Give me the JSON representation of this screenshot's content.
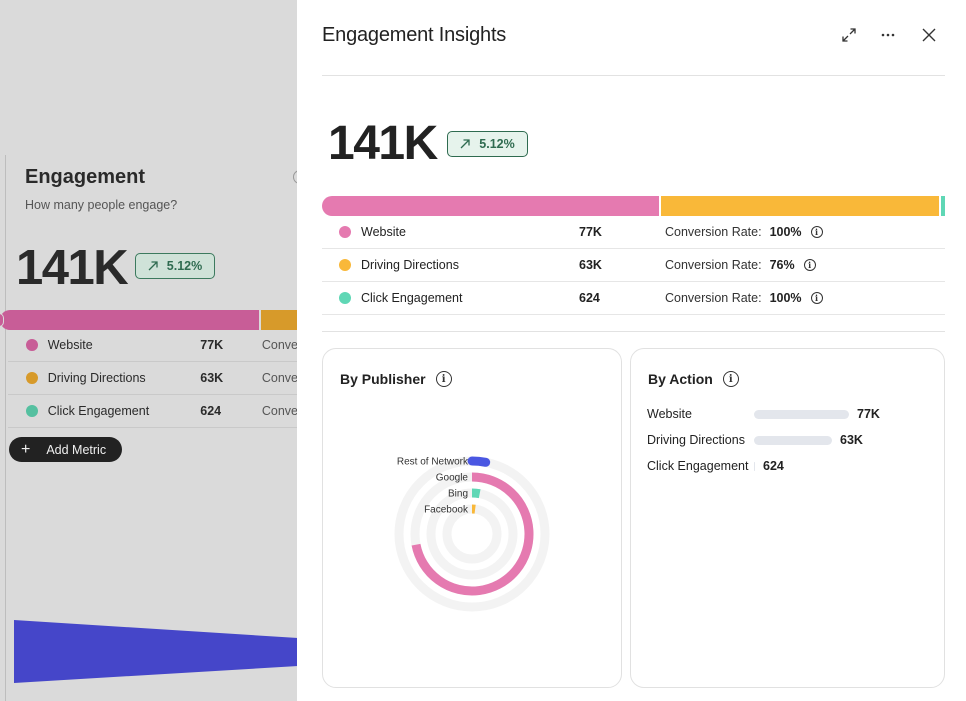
{
  "background": {
    "title": "Engagement",
    "subtitle": "How many people engage?",
    "total": "141K",
    "change": "5.12%",
    "rows": [
      {
        "name": "Website",
        "value": "77K",
        "conv": "Conve",
        "color": "#c85d97"
      },
      {
        "name": "Driving Directions",
        "value": "63K",
        "conv": "Conve",
        "color": "#d79a2a"
      },
      {
        "name": "Click Engagement",
        "value": "624",
        "conv": "Conve",
        "color": "#55c0a0"
      }
    ],
    "add_label": "Add Metric"
  },
  "panel": {
    "title": "Engagement Insights",
    "total": "141K",
    "change": "5.12%",
    "conversion_label": "Conversion Rate:",
    "metrics": [
      {
        "name": "Website",
        "value": "77K",
        "rate": "100%",
        "share": 0.545,
        "color": "#e57ab0"
      },
      {
        "name": "Driving Directions",
        "value": "63K",
        "rate": "76%",
        "share": 0.449,
        "color": "#f9b839"
      },
      {
        "name": "Click Engagement",
        "value": "624",
        "rate": "100%",
        "share": 0.006,
        "color": "#5fd7b5"
      }
    ]
  },
  "by_publisher": {
    "title": "By Publisher",
    "items": [
      {
        "name": "Rest of Network",
        "color": "#4a57e2",
        "fraction": 0.03
      },
      {
        "name": "Google",
        "color": "#e57ab0",
        "fraction": 0.72
      },
      {
        "name": "Bing",
        "color": "#5fd7b5",
        "fraction": 0.03
      },
      {
        "name": "Facebook",
        "color": "#f9b839",
        "fraction": 0.02
      }
    ]
  },
  "by_action": {
    "title": "By Action",
    "items": [
      {
        "name": "Website",
        "value": "77K",
        "fraction": 1.0
      },
      {
        "name": "Driving Directions",
        "value": "63K",
        "fraction": 0.82
      },
      {
        "name": "Click Engagement",
        "value": "624",
        "fraction": 0.008
      }
    ]
  }
}
